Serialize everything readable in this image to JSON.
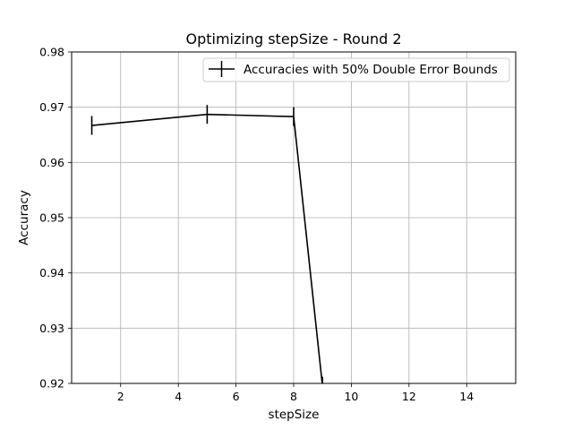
{
  "chart_data": {
    "type": "line",
    "title": "Optimizing stepSize - Round 2",
    "xlabel": "stepSize",
    "ylabel": "Accuracy",
    "xlim": [
      0.3,
      15.7
    ],
    "ylim": [
      0.92,
      0.98
    ],
    "xticks": [
      2,
      4,
      6,
      8,
      10,
      12,
      14
    ],
    "yticks": [
      0.92,
      0.93,
      0.94,
      0.95,
      0.96,
      0.97,
      0.98
    ],
    "xtick_labels": [
      "2",
      "4",
      "6",
      "8",
      "10",
      "12",
      "14"
    ],
    "ytick_labels": [
      "0.92",
      "0.93",
      "0.94",
      "0.95",
      "0.96",
      "0.97",
      "0.98"
    ],
    "grid": true,
    "legend_position": "top-right",
    "series": [
      {
        "name": "Accuracies with 50% Double Error Bounds",
        "color": "#000000",
        "x": [
          1,
          5,
          8,
          9
        ],
        "y": [
          0.9667,
          0.9687,
          0.9683,
          0.9195
        ],
        "yerr": [
          0.0017,
          0.0017,
          0.0017,
          0.0017
        ]
      }
    ]
  }
}
